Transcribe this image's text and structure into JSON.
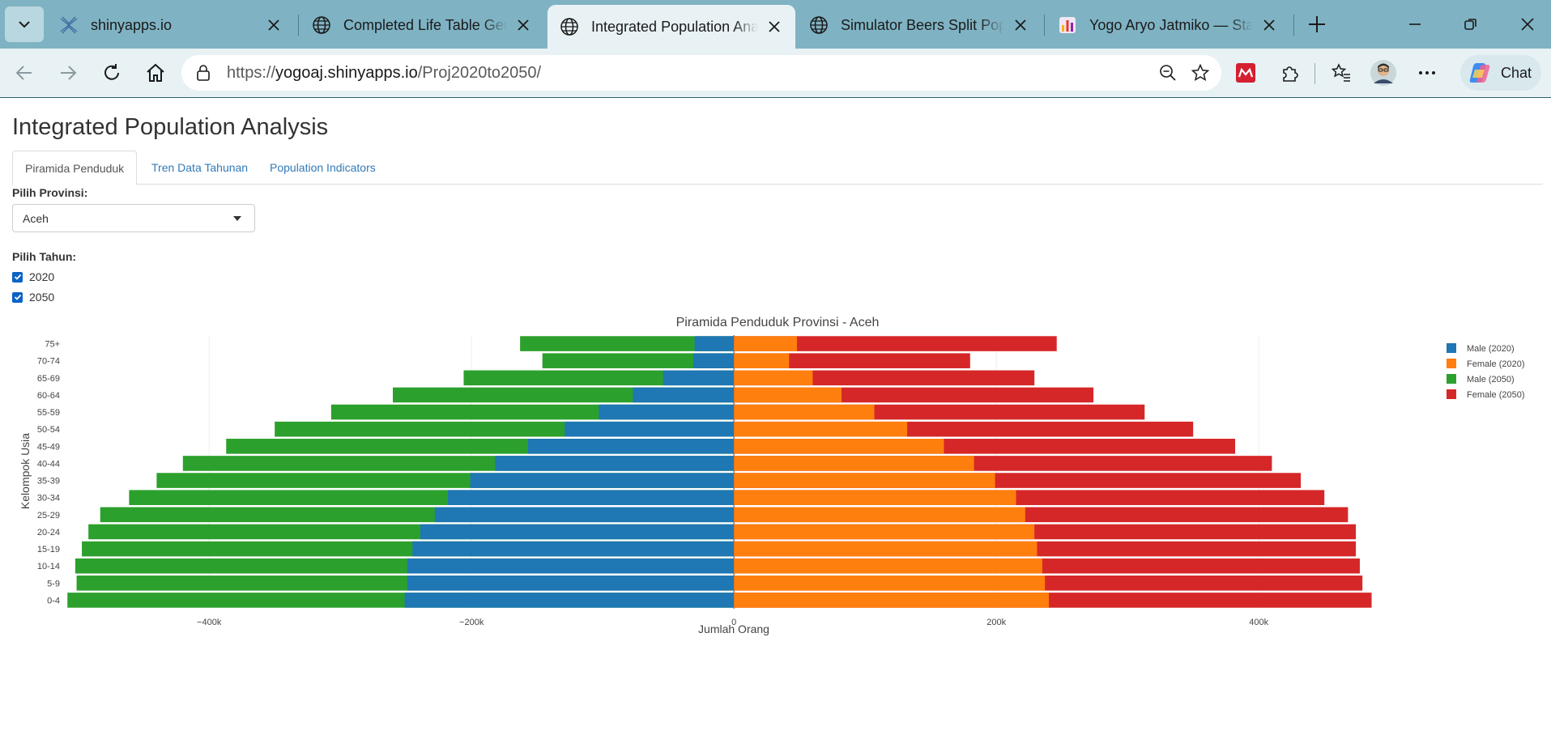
{
  "browser": {
    "tabs": [
      {
        "label": "shinyapps.io",
        "icon": "shinyapps-icon"
      },
      {
        "label": "Completed Life Table Generator",
        "icon": "globe-icon"
      },
      {
        "label": "Integrated Population Analysis",
        "icon": "globe-icon",
        "active": true
      },
      {
        "label": "Simulator Beers Split Population",
        "icon": "globe-icon"
      },
      {
        "label": "Yogo Aryo Jatmiko — Statistics",
        "icon": "chart-favicon-icon"
      }
    ],
    "url_prefix": "https://",
    "url_host": "yogoaj.shinyapps.io",
    "url_path": "/Proj2020to2050/",
    "chat_label": "Chat"
  },
  "page": {
    "title": "Integrated Population Analysis",
    "tabs": [
      {
        "label": "Piramida Penduduk",
        "active": true
      },
      {
        "label": "Tren Data Tahunan"
      },
      {
        "label": "Population Indicators"
      }
    ],
    "province_label": "Pilih Provinsi:",
    "province_value": "Aceh",
    "year_label": "Pilih Tahun:",
    "years": [
      {
        "label": "2020",
        "checked": true
      },
      {
        "label": "2050",
        "checked": true
      }
    ]
  },
  "colors": {
    "male_2020": "#1f77b4",
    "female_2020": "#ff7f0e",
    "male_2050": "#2ca02c",
    "female_2050": "#d62728"
  },
  "chart_data": {
    "type": "bar",
    "orientation": "horizontal",
    "barmode": "overlay",
    "title": "Piramida Penduduk Provinsi - Aceh",
    "xlabel": "Jumlah Orang",
    "ylabel": "Kelompok Usia",
    "xlim": [
      -510000,
      490000
    ],
    "xticks": [
      -400000,
      -200000,
      0,
      200000,
      400000
    ],
    "xtick_labels": [
      "−400k",
      "−200k",
      "0",
      "200k",
      "400k"
    ],
    "legend_position": "top-right",
    "categories": [
      "0-4",
      "5-9",
      "10-14",
      "15-19",
      "20-24",
      "25-29",
      "30-34",
      "35-39",
      "40-44",
      "45-49",
      "50-54",
      "55-59",
      "60-64",
      "65-69",
      "70-74",
      "75+"
    ],
    "series": [
      {
        "name": "Male (2050)",
        "color": "#2ca02c",
        "values": [
          -508000,
          -501000,
          -502000,
          -497000,
          -492000,
          -483000,
          -461000,
          -440000,
          -420000,
          -387000,
          -350000,
          -307000,
          -260000,
          -206000,
          -146000,
          -163000
        ]
      },
      {
        "name": "Female (2050)",
        "color": "#d62728",
        "values": [
          486000,
          479000,
          477000,
          474000,
          474000,
          468000,
          450000,
          432000,
          410000,
          382000,
          350000,
          313000,
          274000,
          229000,
          180000,
          246000
        ]
      },
      {
        "name": "Male (2020)",
        "color": "#1f77b4",
        "values": [
          -251000,
          -249000,
          -249000,
          -245000,
          -239000,
          -228000,
          -218000,
          -201000,
          -182000,
          -157000,
          -129000,
          -103000,
          -77000,
          -54000,
          -31000,
          -30000
        ]
      },
      {
        "name": "Female (2020)",
        "color": "#ff7f0e",
        "values": [
          240000,
          237000,
          235000,
          231000,
          229000,
          222000,
          215000,
          199000,
          183000,
          160000,
          132000,
          107000,
          82000,
          60000,
          42000,
          48000
        ]
      }
    ],
    "legend": [
      "Male (2020)",
      "Female (2020)",
      "Male (2050)",
      "Female (2050)"
    ]
  }
}
